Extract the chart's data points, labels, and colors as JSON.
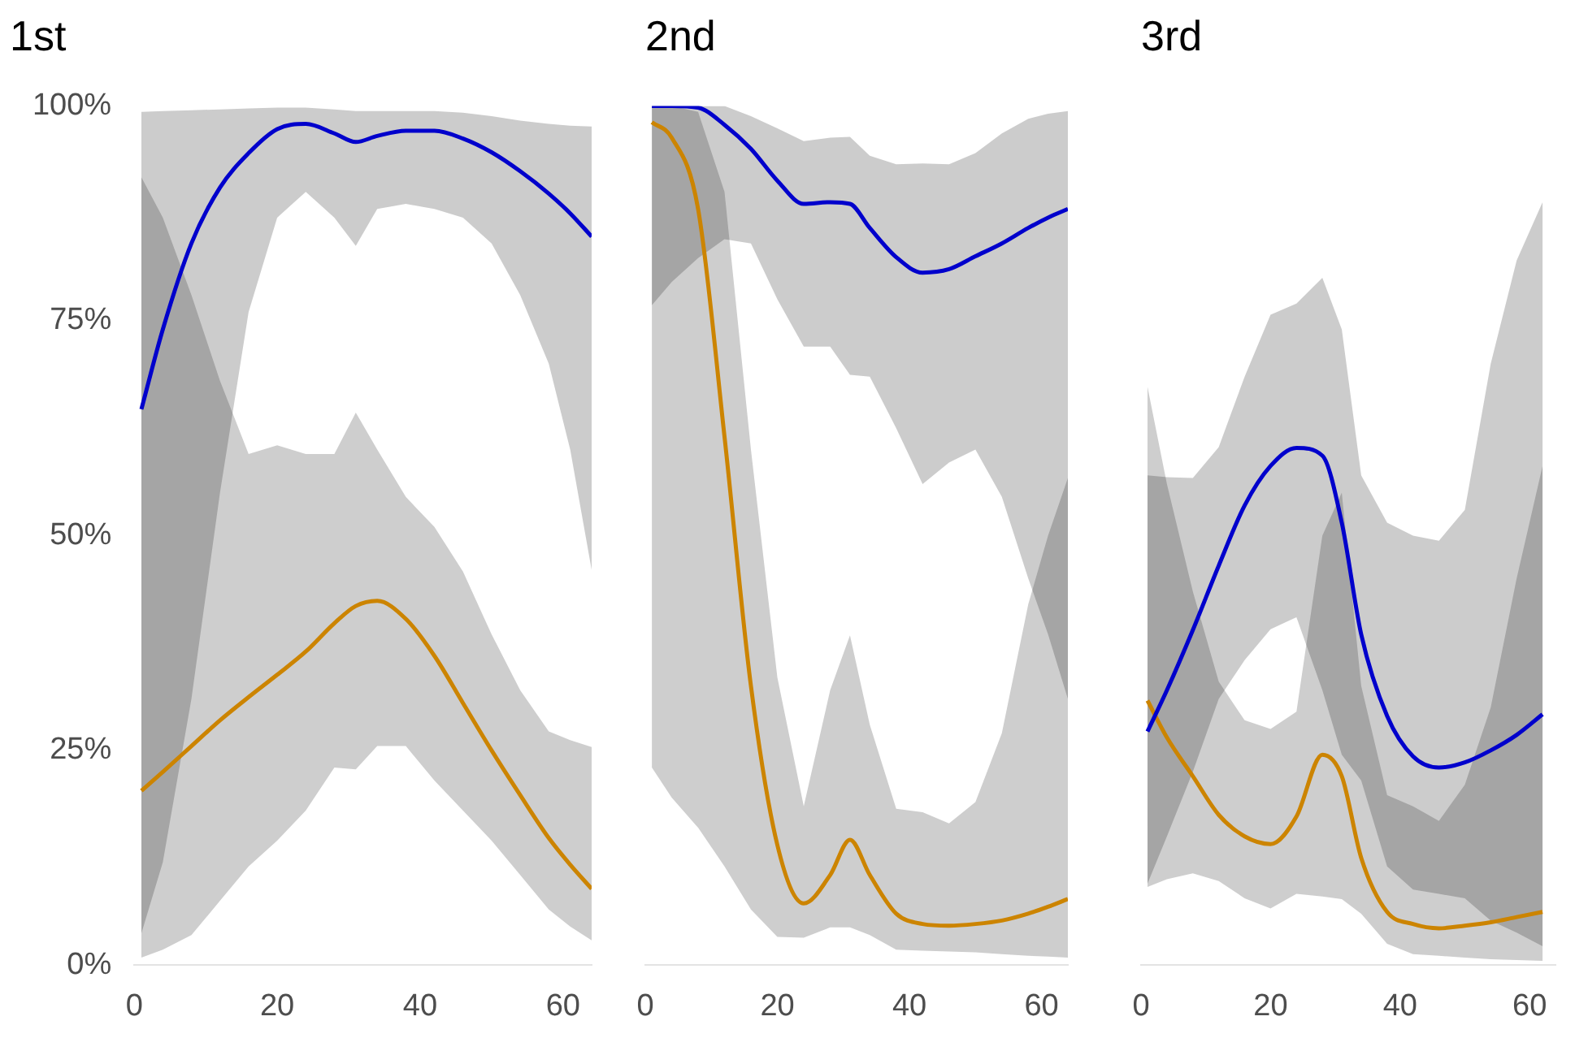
{
  "chart_data": [
    {
      "type": "line",
      "title": "1st",
      "xlim": [
        0,
        64
      ],
      "xticks": [
        0,
        20,
        40,
        60
      ],
      "ylim": [
        0,
        100
      ],
      "yticks": [
        {
          "value": 0,
          "label": "0%"
        },
        {
          "value": 25,
          "label": "25%"
        },
        {
          "value": 50,
          "label": "50%"
        },
        {
          "value": 75,
          "label": "75%"
        },
        {
          "value": 100,
          "label": "100%"
        }
      ],
      "grid": false,
      "legend": false,
      "marker": "none",
      "series": [
        {
          "color": "#0000cc",
          "x": [
            1,
            4,
            8,
            12,
            16,
            20,
            24,
            28,
            31,
            34,
            38,
            42,
            46,
            50,
            54,
            58,
            61,
            64
          ],
          "values": [
            64.7,
            74,
            84,
            90.5,
            94.5,
            97.3,
            97.9,
            96.8,
            95.8,
            96.5,
            97.1,
            97.1,
            96.2,
            94.6,
            92.4,
            89.8,
            87.5,
            84.8
          ],
          "lower": [
            3.7,
            12,
            31,
            55,
            76,
            87,
            90,
            87,
            83.7,
            88,
            88.6,
            88,
            87,
            84,
            78,
            70,
            60,
            46
          ],
          "upper": [
            99.3,
            99.4,
            99.5,
            99.6,
            99.7,
            99.8,
            99.8,
            99.6,
            99.4,
            99.4,
            99.4,
            99.4,
            99.2,
            98.8,
            98.3,
            97.9,
            97.7,
            97.6
          ]
        },
        {
          "color": "#cc8400",
          "x": [
            1,
            4,
            8,
            12,
            16,
            20,
            24,
            28,
            31,
            34,
            38,
            42,
            46,
            50,
            54,
            58,
            61,
            64
          ],
          "values": [
            20.3,
            22.5,
            25.5,
            28.5,
            31.2,
            33.8,
            36.5,
            39.8,
            41.8,
            42.4,
            40.3,
            36,
            30.5,
            25,
            19.8,
            14.8,
            11.7,
            8.9
          ],
          "lower": [
            0.9,
            1.8,
            3.5,
            7.5,
            11.5,
            14.5,
            18,
            23,
            22.8,
            25.5,
            25.5,
            21.5,
            18,
            14.5,
            10.5,
            6.5,
            4.5,
            2.9
          ],
          "upper": [
            91.7,
            87,
            78,
            68,
            59.5,
            60.5,
            59.5,
            59.5,
            64.3,
            60,
            54.5,
            51,
            45.8,
            38.5,
            32,
            27.2,
            26.2,
            25.4
          ]
        }
      ]
    },
    {
      "type": "line",
      "title": "2nd",
      "xlim": [
        0,
        64
      ],
      "xticks": [
        0,
        20,
        40,
        60
      ],
      "ylim": [
        0,
        100
      ],
      "tick_labels": "x",
      "grid": false,
      "legend": false,
      "marker": "none",
      "series": [
        {
          "color": "#0000cc",
          "x": [
            1,
            4,
            8,
            12,
            16,
            20,
            24,
            28,
            31,
            34,
            38,
            42,
            46,
            50,
            54,
            58,
            61,
            64
          ],
          "values": [
            100,
            100,
            99.8,
            97.8,
            95,
            91.3,
            88.6,
            88.8,
            88.6,
            85.8,
            82.4,
            80.6,
            81,
            82.5,
            84,
            85.8,
            87,
            88
          ],
          "lower": [
            76.8,
            79.5,
            82.3,
            84.5,
            84,
            77.5,
            72,
            72,
            68.7,
            68.5,
            62.5,
            56,
            58.5,
            60,
            54.5,
            45,
            38.5,
            31
          ],
          "upper": [
            100,
            100,
            100,
            100,
            98.8,
            97.4,
            95.9,
            96.3,
            96.4,
            94.2,
            93.2,
            93.3,
            93.2,
            94.5,
            96.8,
            98.5,
            99.1,
            99.4
          ]
        },
        {
          "color": "#cc8400",
          "x": [
            1,
            4,
            8,
            12,
            16,
            20,
            24,
            28,
            31,
            34,
            38,
            42,
            46,
            50,
            54,
            58,
            61,
            64
          ],
          "values": [
            98.1,
            96.3,
            88,
            61.5,
            32.5,
            14,
            7.2,
            10.5,
            14.6,
            10.5,
            6,
            4.8,
            4.6,
            4.8,
            5.2,
            6,
            6.8,
            7.7
          ],
          "lower": [
            23,
            19.5,
            16,
            11.5,
            6.5,
            3.3,
            3.2,
            4.4,
            4.4,
            3.5,
            1.8,
            1.7,
            1.6,
            1.5,
            1.3,
            1.1,
            1,
            0.9
          ],
          "upper": [
            100,
            100,
            99.3,
            90,
            60,
            33.5,
            18.5,
            32,
            38.4,
            28,
            18.2,
            17.8,
            16.5,
            19,
            27,
            42,
            50,
            56.7
          ]
        }
      ]
    },
    {
      "type": "line",
      "title": "3rd",
      "xlim": [
        0,
        64
      ],
      "xticks": [
        0,
        20,
        40,
        60
      ],
      "ylim": [
        0,
        100
      ],
      "tick_labels": "x",
      "grid": false,
      "legend": false,
      "marker": "none",
      "series": [
        {
          "color": "#0000cc",
          "x": [
            1,
            4,
            8,
            12,
            16,
            20,
            24,
            28,
            31,
            34,
            38,
            42,
            46,
            50,
            54,
            58,
            62
          ],
          "values": [
            27.2,
            32,
            39,
            46.5,
            53.5,
            58.1,
            60.2,
            59.3,
            51.5,
            38.5,
            29,
            24.3,
            23,
            23.6,
            25,
            26.8,
            29.2
          ],
          "lower": [
            9.5,
            15,
            22.5,
            31,
            35.5,
            39.1,
            40.5,
            32,
            24.5,
            21.5,
            11.5,
            8.8,
            8.3,
            7.8,
            5.2,
            3.8,
            2.2
          ],
          "upper": [
            57,
            56.8,
            56.7,
            60.3,
            68.5,
            75.7,
            77,
            80,
            74,
            57,
            51.5,
            50,
            49.4,
            53,
            70,
            82,
            88.8
          ]
        },
        {
          "color": "#cc8400",
          "x": [
            1,
            4,
            8,
            12,
            16,
            20,
            24,
            28,
            31,
            34,
            38,
            42,
            46,
            50,
            54,
            58,
            62
          ],
          "values": [
            30.8,
            26.5,
            22,
            17.5,
            15,
            14.1,
            17.3,
            24.5,
            22,
            12.5,
            6.2,
            4.8,
            4.3,
            4.6,
            5,
            5.6,
            6.2
          ],
          "lower": [
            9.1,
            10,
            10.7,
            9.8,
            7.8,
            6.6,
            8.3,
            8,
            7.7,
            6,
            2.5,
            1.3,
            1.1,
            0.9,
            0.7,
            0.6,
            0.5
          ],
          "upper": [
            67.3,
            56,
            43.5,
            33,
            28.5,
            27.5,
            29.5,
            50,
            55,
            32.5,
            19.8,
            18.5,
            16.8,
            21,
            30,
            45,
            58.1
          ]
        }
      ]
    }
  ]
}
